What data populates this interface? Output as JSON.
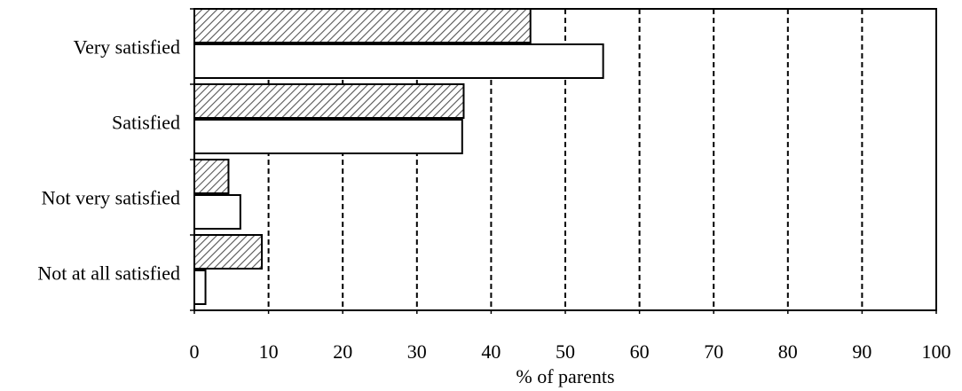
{
  "chart_data": {
    "type": "bar",
    "orientation": "horizontal",
    "title": "",
    "xlabel": "% of parents",
    "ylabel": "",
    "xlim": [
      0,
      100
    ],
    "xticks": [
      "0",
      "10",
      "20",
      "30",
      "40",
      "50",
      "60",
      "70",
      "80",
      "90",
      "100"
    ],
    "grid": "vertical dashed",
    "categories": [
      "Very satisfied",
      "Satisfied",
      "Not very satisfied",
      "Not at all satisfied"
    ],
    "series": [
      {
        "pattern": "hatched",
        "values": [
          45.3,
          36.3,
          4.6,
          9.1
        ]
      },
      {
        "pattern": "white",
        "values": [
          55.1,
          36.1,
          6.2,
          1.5
        ]
      }
    ]
  }
}
